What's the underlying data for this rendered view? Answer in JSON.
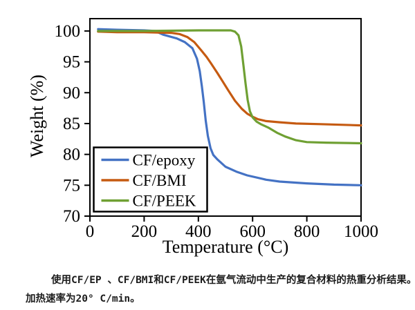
{
  "figure": {
    "caption_line1": "使用CF/EP 、CF/BMI和CF/PEEK在氩气流动中生产的复合材料的热重分析结果。",
    "caption_line2": "加热速率为20° C/min。"
  },
  "chart_data": {
    "type": "line",
    "title": "",
    "xlabel": "Temperature  (°C)",
    "ylabel": "Weight  (%)",
    "xlim": [
      0,
      1000
    ],
    "ylim": [
      70,
      102
    ],
    "xticks": [
      0,
      200,
      400,
      600,
      800,
      1000
    ],
    "yticks": [
      70,
      75,
      80,
      85,
      90,
      95,
      100
    ],
    "grid": false,
    "legend_position": "lower-left",
    "series": [
      {
        "name": "CF/epoxy",
        "color": "#4472C4",
        "points": [
          [
            30,
            100.3
          ],
          [
            100,
            100.2
          ],
          [
            200,
            100.1
          ],
          [
            240,
            100
          ],
          [
            270,
            99.4
          ],
          [
            320,
            98.8
          ],
          [
            350,
            98.2
          ],
          [
            378,
            97.2
          ],
          [
            395,
            95.5
          ],
          [
            405,
            93.5
          ],
          [
            413,
            91
          ],
          [
            420,
            88.5
          ],
          [
            427,
            85.5
          ],
          [
            435,
            83
          ],
          [
            445,
            81
          ],
          [
            455,
            79.9
          ],
          [
            470,
            79.2
          ],
          [
            500,
            78
          ],
          [
            540,
            77.2
          ],
          [
            580,
            76.6
          ],
          [
            650,
            75.9
          ],
          [
            700,
            75.6
          ],
          [
            800,
            75.3
          ],
          [
            900,
            75.1
          ],
          [
            1000,
            75
          ]
        ]
      },
      {
        "name": "CF/BMI",
        "color": "#C55A11",
        "points": [
          [
            30,
            99.9
          ],
          [
            100,
            99.8
          ],
          [
            200,
            99.8
          ],
          [
            300,
            99.7
          ],
          [
            330,
            99.5
          ],
          [
            360,
            99
          ],
          [
            385,
            98.2
          ],
          [
            410,
            96.9
          ],
          [
            430,
            95.8
          ],
          [
            446,
            94.8
          ],
          [
            470,
            93.2
          ],
          [
            490,
            91.8
          ],
          [
            510,
            90.4
          ],
          [
            535,
            88.7
          ],
          [
            560,
            87.4
          ],
          [
            580,
            86.6
          ],
          [
            600,
            86.1
          ],
          [
            620,
            85.7
          ],
          [
            650,
            85.4
          ],
          [
            700,
            85.2
          ],
          [
            760,
            85
          ],
          [
            850,
            84.9
          ],
          [
            1000,
            84.7
          ]
        ]
      },
      {
        "name": "CF/PEEK",
        "color": "#6FA033",
        "points": [
          [
            30,
            100
          ],
          [
            200,
            100
          ],
          [
            400,
            100.1
          ],
          [
            520,
            100.1
          ],
          [
            535,
            99.9
          ],
          [
            548,
            99.3
          ],
          [
            558,
            97.5
          ],
          [
            566,
            94.5
          ],
          [
            574,
            91.5
          ],
          [
            582,
            88.8
          ],
          [
            590,
            87
          ],
          [
            600,
            86
          ],
          [
            615,
            85.3
          ],
          [
            630,
            84.9
          ],
          [
            660,
            84.3
          ],
          [
            690,
            83.5
          ],
          [
            720,
            82.9
          ],
          [
            760,
            82.3
          ],
          [
            800,
            82
          ],
          [
            870,
            81.9
          ],
          [
            1000,
            81.8
          ]
        ]
      }
    ]
  }
}
